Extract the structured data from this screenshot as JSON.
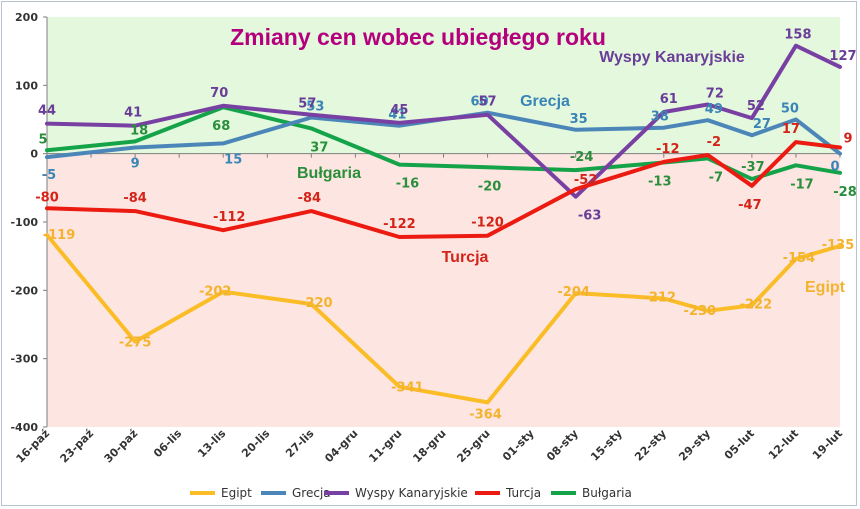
{
  "chart_data": {
    "type": "line",
    "title": "Zmiany cen wobec ubiegłego roku",
    "categories": [
      "16-paź",
      "23-paź",
      "30-paź",
      "06-lis",
      "13-lis",
      "20-lis",
      "27-lis",
      "04-gru",
      "11-gru",
      "18-gru",
      "25-gru",
      "01-sty",
      "08-sty",
      "15-sty",
      "22-sty",
      "29-sty",
      "05-lut",
      "12-lut",
      "19-lut"
    ],
    "ylim": [
      -400,
      200
    ],
    "yticks": [
      -400,
      -300,
      -200,
      -100,
      0,
      100,
      200
    ],
    "grid": false,
    "legend": "bottom",
    "background": {
      "positive": "#e3f8dd",
      "negative": "#fde6e1"
    },
    "title_color": "#b5007e",
    "series": [
      {
        "name": "Egipt",
        "color": "#fbbd27",
        "label_color": "#f4b32e",
        "values": [
          -119,
          null,
          -275,
          null,
          -202,
          null,
          -220,
          null,
          -341,
          null,
          -364,
          null,
          -204,
          null,
          -212,
          -230,
          -222,
          -154,
          -135
        ],
        "labels": [
          "-119",
          null,
          "-275",
          null,
          "-202",
          null,
          "-220",
          null,
          "-341",
          null,
          "-364",
          null,
          "-204",
          null,
          "-212",
          "-230",
          "-222",
          "-154",
          "-135"
        ]
      },
      {
        "name": "Grecja",
        "color": "#4c86b8",
        "label_color": "#3a85b5",
        "values": [
          -5,
          null,
          9,
          null,
          15,
          null,
          53,
          null,
          41,
          null,
          60,
          null,
          35,
          null,
          38,
          49,
          27,
          50,
          0
        ],
        "labels": [
          "-5",
          null,
          "9",
          null,
          "15",
          null,
          "53",
          null,
          "41",
          null,
          "60",
          null,
          "35",
          null,
          "38",
          "49",
          "27",
          "50",
          "0"
        ]
      },
      {
        "name": "Wyspy Kanaryjskie",
        "color": "#7940a3",
        "label_color": "#6a3d99",
        "values": [
          44,
          null,
          41,
          null,
          70,
          null,
          57,
          null,
          45,
          null,
          57,
          null,
          -63,
          null,
          61,
          72,
          52,
          158,
          127
        ],
        "labels": [
          "44",
          null,
          "41",
          null,
          "70",
          null,
          "57",
          null,
          "45",
          null,
          "57",
          null,
          "-63",
          null,
          "61",
          "72",
          "52",
          "158",
          "127"
        ]
      },
      {
        "name": "Turcja",
        "color": "#ec1b12",
        "label_color": "#d42319",
        "values": [
          -80,
          null,
          -84,
          null,
          -112,
          null,
          -84,
          null,
          -122,
          null,
          -120,
          null,
          -52,
          null,
          -12,
          -2,
          -47,
          17,
          9
        ],
        "labels": [
          "-80",
          null,
          "-84",
          null,
          "-112",
          null,
          "-84",
          null,
          "-122",
          null,
          "-120",
          null,
          "-52",
          null,
          "-12",
          "-2",
          "-47",
          "17",
          "9"
        ]
      },
      {
        "name": "Bułgaria",
        "color": "#15a34a",
        "label_color": "#2a8f3c",
        "values": [
          5,
          null,
          18,
          null,
          68,
          null,
          37,
          null,
          -16,
          null,
          -20,
          null,
          -24,
          null,
          -13,
          -7,
          -37,
          -17,
          -28
        ],
        "labels": [
          "5",
          null,
          "18",
          null,
          "68",
          null,
          "37",
          null,
          "-16",
          null,
          "-20",
          null,
          "-24",
          null,
          "-13",
          "-7",
          "-37",
          "-17",
          "-28"
        ]
      }
    ],
    "series_annotations": [
      {
        "series": "Wyspy Kanaryjskie",
        "text": "Wyspy Kanaryjskie"
      },
      {
        "series": "Grecja",
        "text": "Grecja"
      },
      {
        "series": "Bułgaria",
        "text": "Bułgaria"
      },
      {
        "series": "Turcja",
        "text": "Turcja"
      },
      {
        "series": "Egipt",
        "text": "Egipt"
      }
    ]
  }
}
